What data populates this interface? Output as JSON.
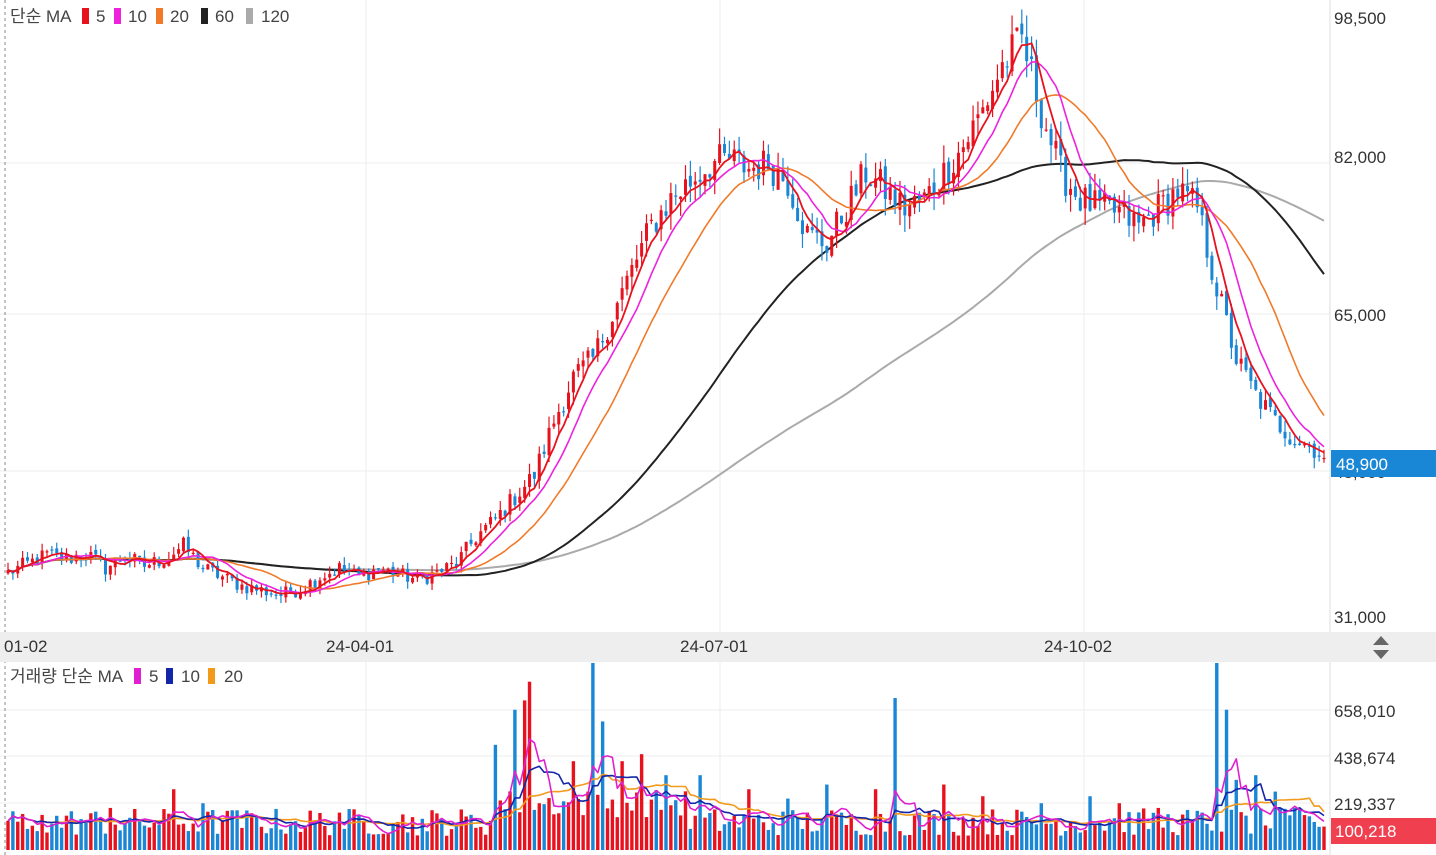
{
  "colors": {
    "ma5": "#e8121f",
    "ma10": "#ee22dd",
    "ma20": "#f07a2a",
    "ma60": "#222222",
    "ma120": "#aaaaaa",
    "up": "#e8121f",
    "down": "#1a86d6",
    "vol_ma5": "#e020d0",
    "vol_ma10": "#1426a8",
    "vol_ma20": "#f29a1c",
    "last_price_bg": "#1a86d6",
    "last_volume_bg": "#f04050"
  },
  "price_legend": {
    "prefix": "단순 MA",
    "items": [
      {
        "label": "5",
        "color_key": "ma5"
      },
      {
        "label": "10",
        "color_key": "ma10"
      },
      {
        "label": "20",
        "color_key": "ma20"
      },
      {
        "label": "60",
        "color_key": "ma60"
      },
      {
        "label": "120",
        "color_key": "ma120"
      }
    ]
  },
  "volume_legend": {
    "prefix": "거래량 단순 MA",
    "items": [
      {
        "label": "5",
        "color_key": "vol_ma5"
      },
      {
        "label": "10",
        "color_key": "vol_ma10"
      },
      {
        "label": "20",
        "color_key": "vol_ma20"
      }
    ]
  },
  "date_labels": [
    "01-02",
    "24-04-01",
    "24-07-01",
    "24-10-02"
  ],
  "chart_data": {
    "type": "candlestick",
    "price_axis": {
      "ticks": [
        31000,
        48000,
        65000,
        82000,
        98500
      ],
      "tick_labels": [
        "31,000",
        "48,000",
        "65,000",
        "82,000",
        "98,500"
      ]
    },
    "last_price": {
      "value": 48900,
      "label": "48,900"
    },
    "volume_axis": {
      "ticks": [
        219337,
        438674,
        658010
      ],
      "tick_labels": [
        "219,337",
        "438,674",
        "658,010"
      ]
    },
    "last_volume": {
      "value": 100218,
      "label": "100,218"
    },
    "keyframes": [
      [
        0,
        36000
      ],
      [
        4,
        37000
      ],
      [
        8,
        38000
      ],
      [
        12,
        37500
      ],
      [
        16,
        38200
      ],
      [
        20,
        36500
      ],
      [
        24,
        37800
      ],
      [
        28,
        36800
      ],
      [
        32,
        37500
      ],
      [
        36,
        39000
      ],
      [
        40,
        36500
      ],
      [
        44,
        35500
      ],
      [
        48,
        34500
      ],
      [
        52,
        34000
      ],
      [
        56,
        33500
      ],
      [
        60,
        34200
      ],
      [
        64,
        35500
      ],
      [
        68,
        36500
      ],
      [
        72,
        35500
      ],
      [
        76,
        36500
      ],
      [
        80,
        35800
      ],
      [
        84,
        35200
      ],
      [
        88,
        36000
      ],
      [
        92,
        37000
      ],
      [
        96,
        40000
      ],
      [
        100,
        42000
      ],
      [
        104,
        44500
      ],
      [
        108,
        47000
      ],
      [
        112,
        53000
      ],
      [
        116,
        58000
      ],
      [
        120,
        60000
      ],
      [
        124,
        65000
      ],
      [
        128,
        70000
      ],
      [
        132,
        75000
      ],
      [
        136,
        78000
      ],
      [
        140,
        80000
      ],
      [
        144,
        82000
      ],
      [
        148,
        82500
      ],
      [
        152,
        81500
      ],
      [
        156,
        82000
      ],
      [
        160,
        80000
      ],
      [
        164,
        74000
      ],
      [
        168,
        73000
      ],
      [
        172,
        77000
      ],
      [
        176,
        81000
      ],
      [
        180,
        79000
      ],
      [
        184,
        77000
      ],
      [
        188,
        78000
      ],
      [
        192,
        81000
      ],
      [
        196,
        84000
      ],
      [
        200,
        88000
      ],
      [
        204,
        93000
      ],
      [
        208,
        96000
      ],
      [
        212,
        88000
      ],
      [
        216,
        81000
      ],
      [
        220,
        78000
      ],
      [
        224,
        77000
      ],
      [
        228,
        76500
      ],
      [
        232,
        75000
      ],
      [
        236,
        77000
      ],
      [
        240,
        79000
      ],
      [
        244,
        77000
      ],
      [
        248,
        68000
      ],
      [
        252,
        60000
      ],
      [
        256,
        56000
      ],
      [
        260,
        53000
      ],
      [
        264,
        51000
      ],
      [
        268,
        50000
      ],
      [
        270,
        48900
      ]
    ],
    "volume_spikes": [
      [
        4,
        90000
      ],
      [
        7,
        150000
      ],
      [
        21,
        180000
      ],
      [
        34,
        260000
      ],
      [
        40,
        200000
      ],
      [
        46,
        170000
      ],
      [
        58,
        110000
      ],
      [
        68,
        160000
      ],
      [
        80,
        120000
      ],
      [
        86,
        80000
      ],
      [
        100,
        450000
      ],
      [
        104,
        600000
      ],
      [
        106,
        640000
      ],
      [
        107,
        720000
      ],
      [
        116,
        380000
      ],
      [
        120,
        800000
      ],
      [
        122,
        550000
      ],
      [
        126,
        380000
      ],
      [
        130,
        410000
      ],
      [
        135,
        320000
      ],
      [
        142,
        320000
      ],
      [
        152,
        260000
      ],
      [
        160,
        220000
      ],
      [
        168,
        280000
      ],
      [
        178,
        260000
      ],
      [
        182,
        650000
      ],
      [
        192,
        280000
      ],
      [
        200,
        230000
      ],
      [
        212,
        200000
      ],
      [
        222,
        230000
      ],
      [
        228,
        200000
      ],
      [
        236,
        180000
      ],
      [
        248,
        800000
      ],
      [
        250,
        600000
      ],
      [
        252,
        300000
      ],
      [
        256,
        320000
      ],
      [
        260,
        250000
      ],
      [
        264,
        180000
      ],
      [
        268,
        120000
      ],
      [
        270,
        100218
      ]
    ]
  }
}
